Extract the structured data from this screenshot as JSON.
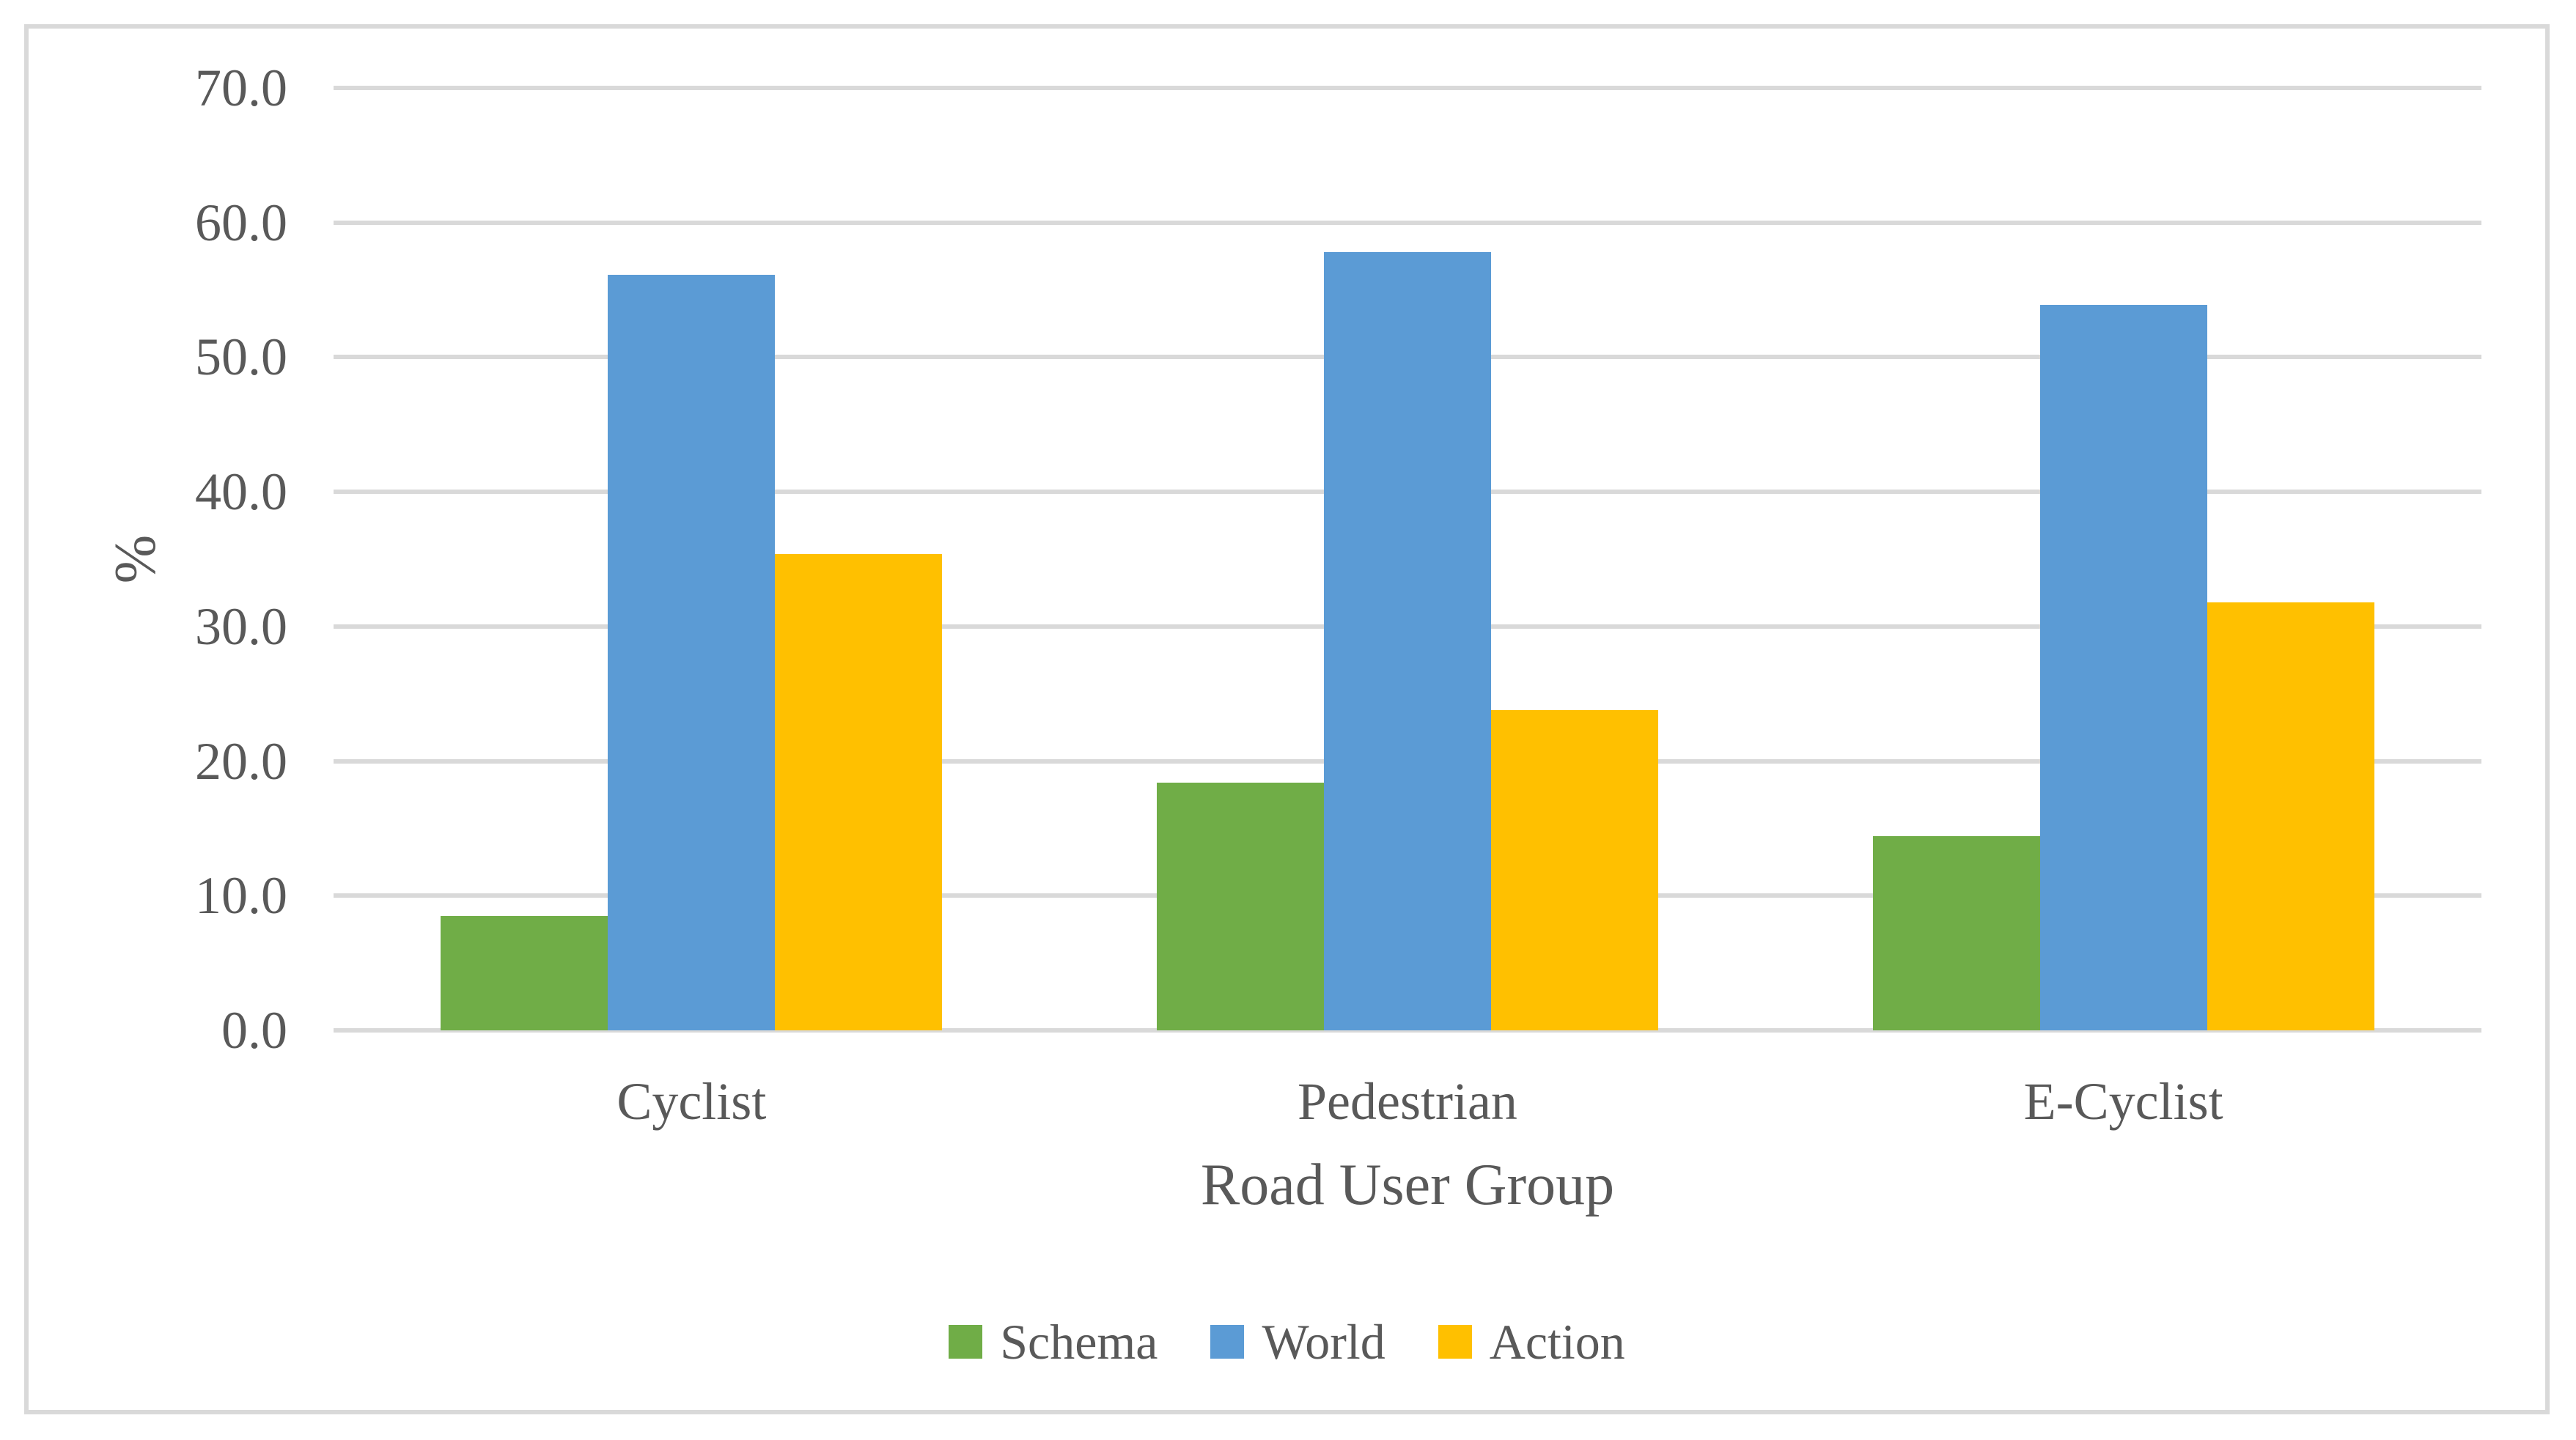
{
  "chart_data": {
    "type": "bar",
    "title": "",
    "categories": [
      "Cyclist",
      "Pedestrian",
      "E-Cyclist"
    ],
    "series": [
      {
        "name": "Schema",
        "color": "#70AD47",
        "values": [
          8.5,
          18.4,
          14.4
        ]
      },
      {
        "name": "World",
        "color": "#5B9BD5",
        "values": [
          56.1,
          57.8,
          53.9
        ]
      },
      {
        "name": "Action",
        "color": "#FFC000",
        "values": [
          35.4,
          23.8,
          31.8
        ]
      }
    ],
    "xlabel": "Road User Group",
    "ylabel": "%",
    "ylim": [
      0,
      70
    ],
    "ytick_step": 10,
    "ytick_labels": [
      "0.0",
      "10.0",
      "20.0",
      "30.0",
      "40.0",
      "50.0",
      "60.0",
      "70.0"
    ],
    "grid": true,
    "grid_color": "#D9D9D9",
    "frame_border_color": "#D9D9D9",
    "text_color": "#595959",
    "legend_position": "bottom",
    "legend_entries": [
      "Schema",
      "World",
      "Action"
    ]
  }
}
